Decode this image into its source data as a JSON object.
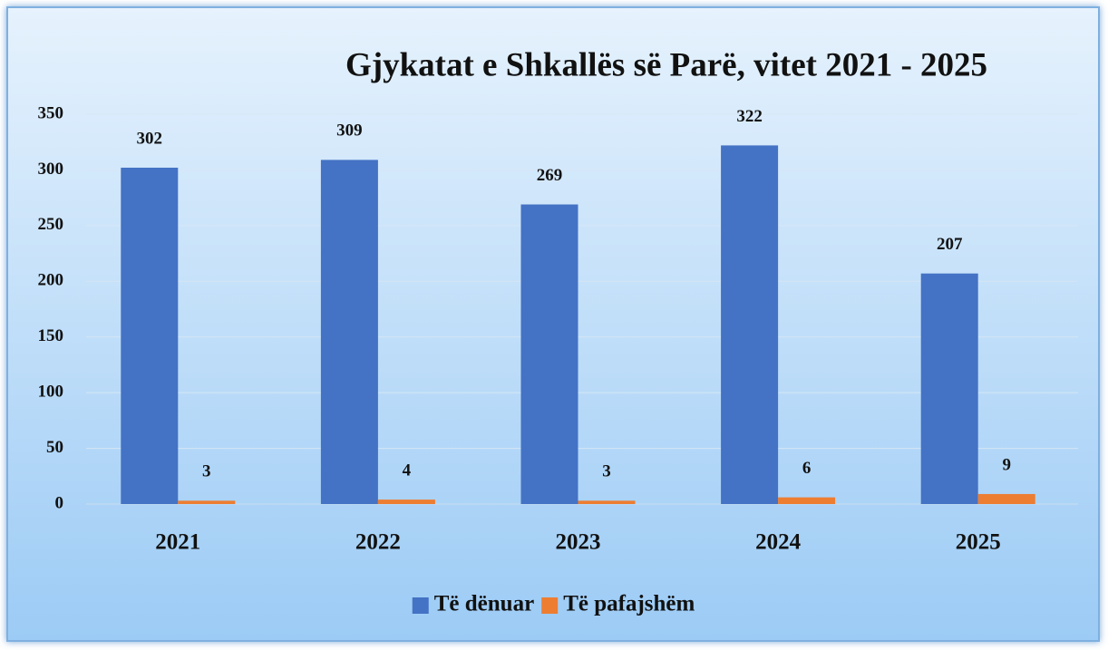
{
  "chart_data": {
    "type": "bar",
    "title": "Gjykatat e Shkallës së Parë, vitet 2021 - 2025",
    "categories": [
      "2021",
      "2022",
      "2023",
      "2024",
      "2025"
    ],
    "series": [
      {
        "name": "Të dënuar",
        "color": "#4472c4",
        "values": [
          302,
          309,
          269,
          322,
          207
        ]
      },
      {
        "name": "Të pafajshëm",
        "color": "#ed7d31",
        "values": [
          3,
          4,
          3,
          6,
          9
        ]
      }
    ],
    "ylim": [
      0,
      350
    ],
    "yticks": [
      0,
      50,
      100,
      150,
      200,
      250,
      300,
      350
    ],
    "grid": true,
    "legend": "bottom"
  }
}
